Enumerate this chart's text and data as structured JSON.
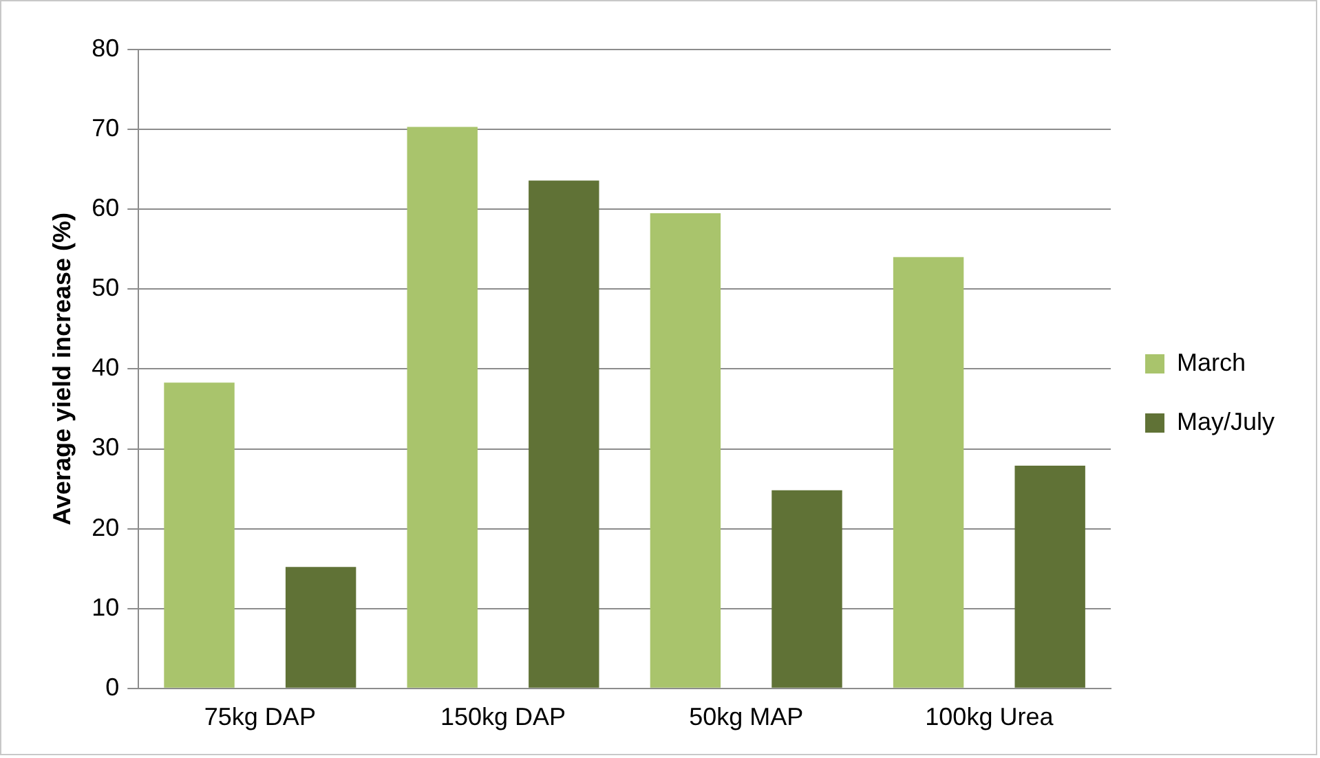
{
  "chart_data": {
    "type": "bar",
    "ylabel": "Average yield increase (%)",
    "categories": [
      "75kg DAP",
      "150kg DAP",
      "50kg MAP",
      "100kg Urea"
    ],
    "series": [
      {
        "name": "March",
        "color": "#a9c46c",
        "values": [
          38.3,
          70.3,
          59.5,
          54.0
        ]
      },
      {
        "name": "May/July",
        "color": "#607236",
        "values": [
          15.2,
          63.6,
          24.8,
          27.9
        ]
      }
    ],
    "ylim": [
      0,
      80
    ],
    "yticks": [
      0,
      10,
      20,
      30,
      40,
      50,
      60,
      70,
      80
    ],
    "grid": "y",
    "legend": "right"
  }
}
